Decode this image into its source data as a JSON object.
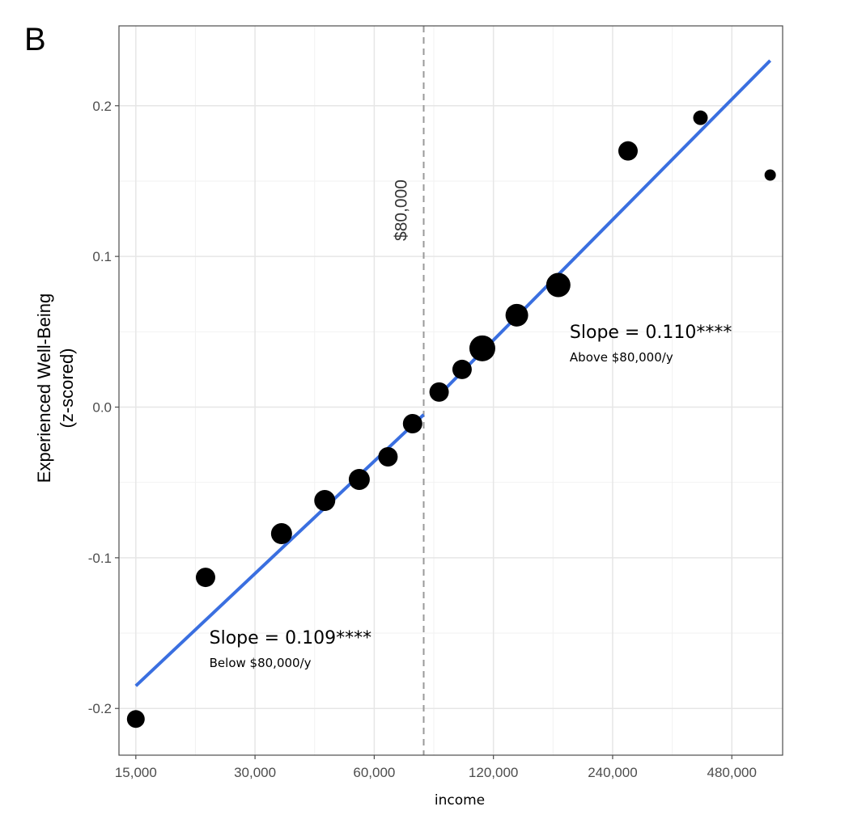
{
  "panel_label": "B",
  "colors": {
    "fit_line": "#3a6fe0",
    "points": "#000000",
    "grid_major": "#e6e6e6",
    "grid_minor": "#f2f2f2",
    "reference_line": "#9a9a9a"
  },
  "chart_data": {
    "type": "scatter",
    "xlabel": "income",
    "ylabel_lines": [
      "Experienced Well-Being",
      "(z-scored)"
    ],
    "x_scale": "log",
    "xlim": [
      13600,
      645000
    ],
    "ylim": [
      -0.231,
      0.253
    ],
    "x_ticks": [
      15000,
      30000,
      60000,
      120000,
      240000,
      480000
    ],
    "x_tick_labels": [
      "15,000",
      "30,000",
      "60,000",
      "120,000",
      "240,000",
      "480,000"
    ],
    "y_ticks": [
      -0.2,
      -0.1,
      0.0,
      0.1,
      0.2
    ],
    "y_tick_labels": [
      "-0.2",
      "-0.1",
      "0.0",
      "0.1",
      "0.2"
    ],
    "grid": true,
    "points": [
      {
        "x": 15000,
        "y": -0.207,
        "size": 11
      },
      {
        "x": 22500,
        "y": -0.113,
        "size": 12
      },
      {
        "x": 35000,
        "y": -0.084,
        "size": 13
      },
      {
        "x": 45000,
        "y": -0.062,
        "size": 13
      },
      {
        "x": 55000,
        "y": -0.048,
        "size": 13
      },
      {
        "x": 65000,
        "y": -0.033,
        "size": 12
      },
      {
        "x": 75000,
        "y": -0.011,
        "size": 12
      },
      {
        "x": 87500,
        "y": 0.01,
        "size": 12
      },
      {
        "x": 100000,
        "y": 0.025,
        "size": 12
      },
      {
        "x": 112500,
        "y": 0.039,
        "size": 16
      },
      {
        "x": 137500,
        "y": 0.061,
        "size": 14
      },
      {
        "x": 175000,
        "y": 0.081,
        "size": 15
      },
      {
        "x": 262500,
        "y": 0.17,
        "size": 12
      },
      {
        "x": 400000,
        "y": 0.192,
        "size": 9
      },
      {
        "x": 600000,
        "y": 0.154,
        "size": 7
      }
    ],
    "fit_lines": [
      {
        "x": [
          15000,
          80000
        ],
        "y": [
          -0.185,
          -0.005
        ]
      },
      {
        "x": 87500,
        "x_end": 600000,
        "y": [
          0.008,
          0.23
        ]
      }
    ],
    "reference_line": {
      "x": 80000,
      "label": "$80,000"
    },
    "annotations": [
      {
        "main": "Slope = 0.109****",
        "sub": "Below $80,000/y",
        "x": 23000,
        "y": -0.157
      },
      {
        "main": "Slope = 0.110****",
        "sub": "Above $80,000/y",
        "x": 187000,
        "y": 0.046
      }
    ]
  }
}
